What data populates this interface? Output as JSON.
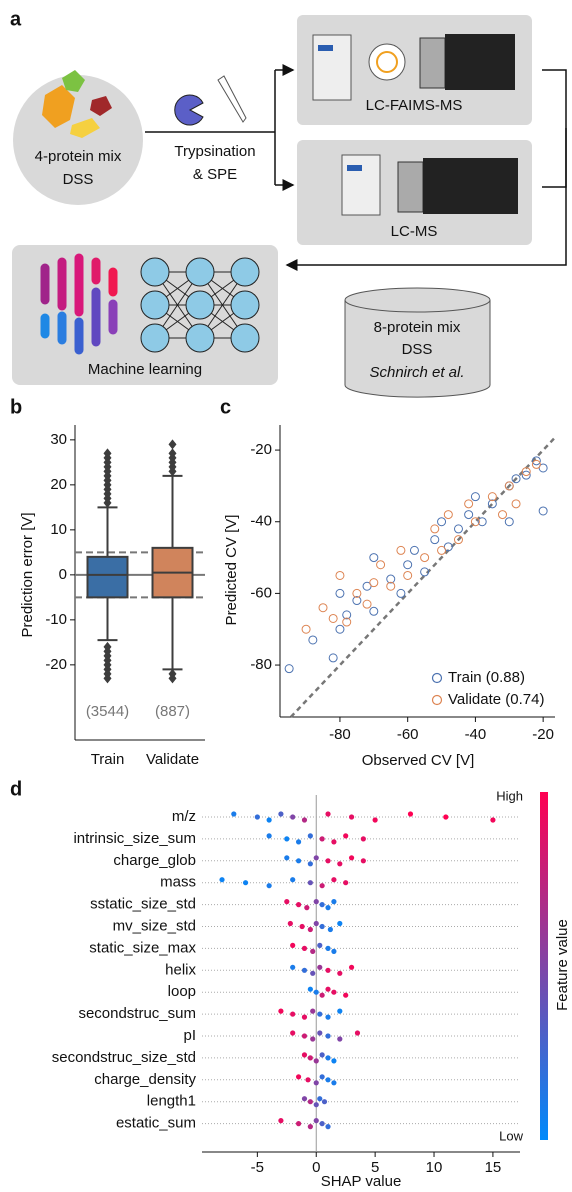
{
  "diagram": {
    "panel_label": "a",
    "sample_label": [
      "4-protein mix",
      "DSS"
    ],
    "step_label": [
      "Trypsination",
      "& SPE"
    ],
    "instrument_1": "LC-FAIMS-MS",
    "instrument_2": "LC-MS",
    "ml_label": "Machine learning",
    "dataset_label": [
      "8-protein mix",
      "DSS",
      "Schnirch et al."
    ]
  },
  "chart_data": [
    {
      "type": "box",
      "panel_label": "b",
      "y_label": "Prediction error [V]",
      "categories": [
        "Train",
        "Validate"
      ],
      "colors": [
        "#3a6ea5",
        "#d0845c"
      ],
      "boxes": [
        {
          "q1": -5,
          "median": 0,
          "q3": 4,
          "whisker_low": -14.5,
          "whisker_high": 15,
          "outliers": [
            16,
            17,
            18,
            19,
            20,
            21,
            22,
            23,
            24,
            25,
            26,
            27,
            -16,
            -17,
            -18,
            -19,
            -20,
            -21,
            -22,
            -23
          ]
        },
        {
          "q1": -5,
          "median": 0.5,
          "q3": 6,
          "whisker_low": -21,
          "whisker_high": 22,
          "outliers": [
            23,
            24,
            25,
            26,
            27,
            29,
            -22,
            -23
          ]
        }
      ],
      "count_labels": [
        "(3544)",
        "(887)"
      ],
      "hlines": [
        {
          "value": 0,
          "style": "solid"
        },
        {
          "value": 5,
          "style": "dashed"
        },
        {
          "value": -5,
          "style": "dashed"
        }
      ],
      "ylim": [
        -36.7,
        33.3
      ],
      "yticks": [
        -20,
        -10,
        0,
        10,
        20,
        30
      ]
    },
    {
      "type": "scatter",
      "panel_label": "c",
      "x_label": "Observed CV [V]",
      "y_label": "Predicted CV [V]",
      "xlim": [
        -97.7,
        -16.5
      ],
      "ylim": [
        -94.5,
        -13
      ],
      "xticks": [
        -80,
        -60,
        -40,
        -20
      ],
      "yticks": [
        -80,
        -60,
        -40,
        -20
      ],
      "diagonal": true,
      "series": [
        {
          "name": "Train (0.88)",
          "color": "#4c72b0",
          "x": [
            -95,
            -88,
            -82,
            -80,
            -80,
            -78,
            -75,
            -72,
            -70,
            -70,
            -65,
            -62,
            -60,
            -58,
            -55,
            -52,
            -50,
            -48,
            -45,
            -42,
            -40,
            -38,
            -35,
            -30,
            -30,
            -28,
            -25,
            -22,
            -20,
            -20
          ],
          "values": [
            -81,
            -73,
            -78,
            -60,
            -70,
            -66,
            -62,
            -58,
            -65,
            -50,
            -56,
            -60,
            -52,
            -48,
            -54,
            -45,
            -40,
            -47,
            -42,
            -38,
            -33,
            -40,
            -35,
            -30,
            -40,
            -28,
            -27,
            -23,
            -25,
            -37
          ]
        },
        {
          "name": "Validate (0.74)",
          "color": "#dd8452",
          "x": [
            -90,
            -85,
            -82,
            -80,
            -78,
            -75,
            -72,
            -70,
            -68,
            -65,
            -62,
            -60,
            -55,
            -52,
            -50,
            -48,
            -45,
            -42,
            -40,
            -35,
            -32,
            -30,
            -28,
            -25,
            -22
          ],
          "values": [
            -70,
            -64,
            -67,
            -55,
            -68,
            -60,
            -63,
            -57,
            -52,
            -58,
            -48,
            -55,
            -50,
            -42,
            -48,
            -38,
            -45,
            -35,
            -40,
            -33,
            -38,
            -30,
            -35,
            -26,
            -24
          ]
        }
      ]
    },
    {
      "type": "beeswarm",
      "panel_label": "d",
      "x_label": "SHAP value",
      "colorbar_label": "Feature value",
      "colorbar_high": "High",
      "colorbar_low": "Low",
      "colormap": [
        "#008afb",
        "#ff0052"
      ],
      "vline": 0,
      "xlim": [
        -9.7,
        17.3
      ],
      "xticks": [
        -5,
        0,
        5,
        10,
        15
      ],
      "series": [
        {
          "name": "m/z",
          "values": [
            -7,
            -5,
            -4,
            -3,
            -2,
            -1,
            1,
            3,
            5,
            8,
            11,
            15
          ],
          "feature_values": [
            0.1,
            0.2,
            0.05,
            0.3,
            0.5,
            0.7,
            0.9,
            0.9,
            0.95,
            1,
            1,
            0.95
          ]
        },
        {
          "name": "intrinsic_size_sum",
          "values": [
            -4,
            -2.5,
            -1.5,
            -0.5,
            0.5,
            1.5,
            2.5,
            4
          ],
          "feature_values": [
            0.1,
            0.05,
            0.1,
            0.2,
            0.8,
            0.9,
            0.95,
            0.9
          ]
        },
        {
          "name": "charge_glob",
          "values": [
            -2.5,
            -1.5,
            -0.5,
            0,
            1,
            2,
            3,
            4
          ],
          "feature_values": [
            0.1,
            0.1,
            0.2,
            0.5,
            0.9,
            0.9,
            0.95,
            0.9
          ]
        },
        {
          "name": "mass",
          "values": [
            -8,
            -6,
            -4,
            -2,
            -0.5,
            0.5,
            1.5,
            2.5
          ],
          "feature_values": [
            0.05,
            0.05,
            0.1,
            0.1,
            0.4,
            0.8,
            0.9,
            0.9
          ]
        },
        {
          "name": "sstatic_size_std",
          "values": [
            -2.5,
            -1.5,
            -0.8,
            0,
            0.5,
            1,
            1.5
          ],
          "feature_values": [
            0.9,
            0.9,
            0.8,
            0.5,
            0.2,
            0.1,
            0.1
          ]
        },
        {
          "name": "mv_size_std",
          "values": [
            -2.2,
            -1.2,
            -0.5,
            0,
            0.5,
            1.2,
            2
          ],
          "feature_values": [
            0.9,
            0.9,
            0.8,
            0.5,
            0.2,
            0.1,
            0.05
          ]
        },
        {
          "name": "static_size_max",
          "values": [
            -2,
            -1,
            -0.3,
            0.3,
            1,
            1.5
          ],
          "feature_values": [
            0.95,
            0.9,
            0.7,
            0.3,
            0.1,
            0.1
          ]
        },
        {
          "name": "helix",
          "values": [
            -2,
            -1,
            -0.3,
            0.3,
            1,
            2,
            3
          ],
          "feature_values": [
            0.1,
            0.2,
            0.4,
            0.6,
            0.9,
            0.9,
            0.95
          ]
        },
        {
          "name": "loop",
          "values": [
            -0.5,
            0,
            0.5,
            1,
            1.5,
            2.5
          ],
          "feature_values": [
            0.05,
            0.1,
            0.8,
            0.9,
            0.9,
            0.95
          ]
        },
        {
          "name": "secondstruc_sum",
          "values": [
            -3,
            -2,
            -1,
            -0.3,
            0.3,
            1,
            2
          ],
          "feature_values": [
            0.95,
            0.9,
            0.9,
            0.6,
            0.2,
            0.1,
            0.05
          ]
        },
        {
          "name": "pI",
          "values": [
            -2,
            -1,
            -0.3,
            0.3,
            1,
            2,
            3.5
          ],
          "feature_values": [
            0.9,
            0.8,
            0.6,
            0.4,
            0.2,
            0.5,
            0.9
          ]
        },
        {
          "name": "secondstruc_size_std",
          "values": [
            -1,
            -0.5,
            0,
            0.5,
            1,
            1.5
          ],
          "feature_values": [
            0.9,
            0.8,
            0.6,
            0.3,
            0.1,
            0.05
          ]
        },
        {
          "name": "charge_density",
          "values": [
            -1.5,
            -0.7,
            0,
            0.5,
            1,
            1.5
          ],
          "feature_values": [
            0.95,
            0.9,
            0.5,
            0.2,
            0.1,
            0.1
          ]
        },
        {
          "name": "length1",
          "values": [
            -1,
            -0.5,
            0,
            0.3,
            0.7
          ],
          "feature_values": [
            0.5,
            0.7,
            0.4,
            0.2,
            0.3
          ]
        },
        {
          "name": "estatic_sum",
          "values": [
            -3,
            -1.5,
            -0.5,
            0,
            0.5,
            1
          ],
          "feature_values": [
            0.9,
            0.8,
            0.7,
            0.5,
            0.3,
            0.2
          ]
        }
      ]
    }
  ]
}
